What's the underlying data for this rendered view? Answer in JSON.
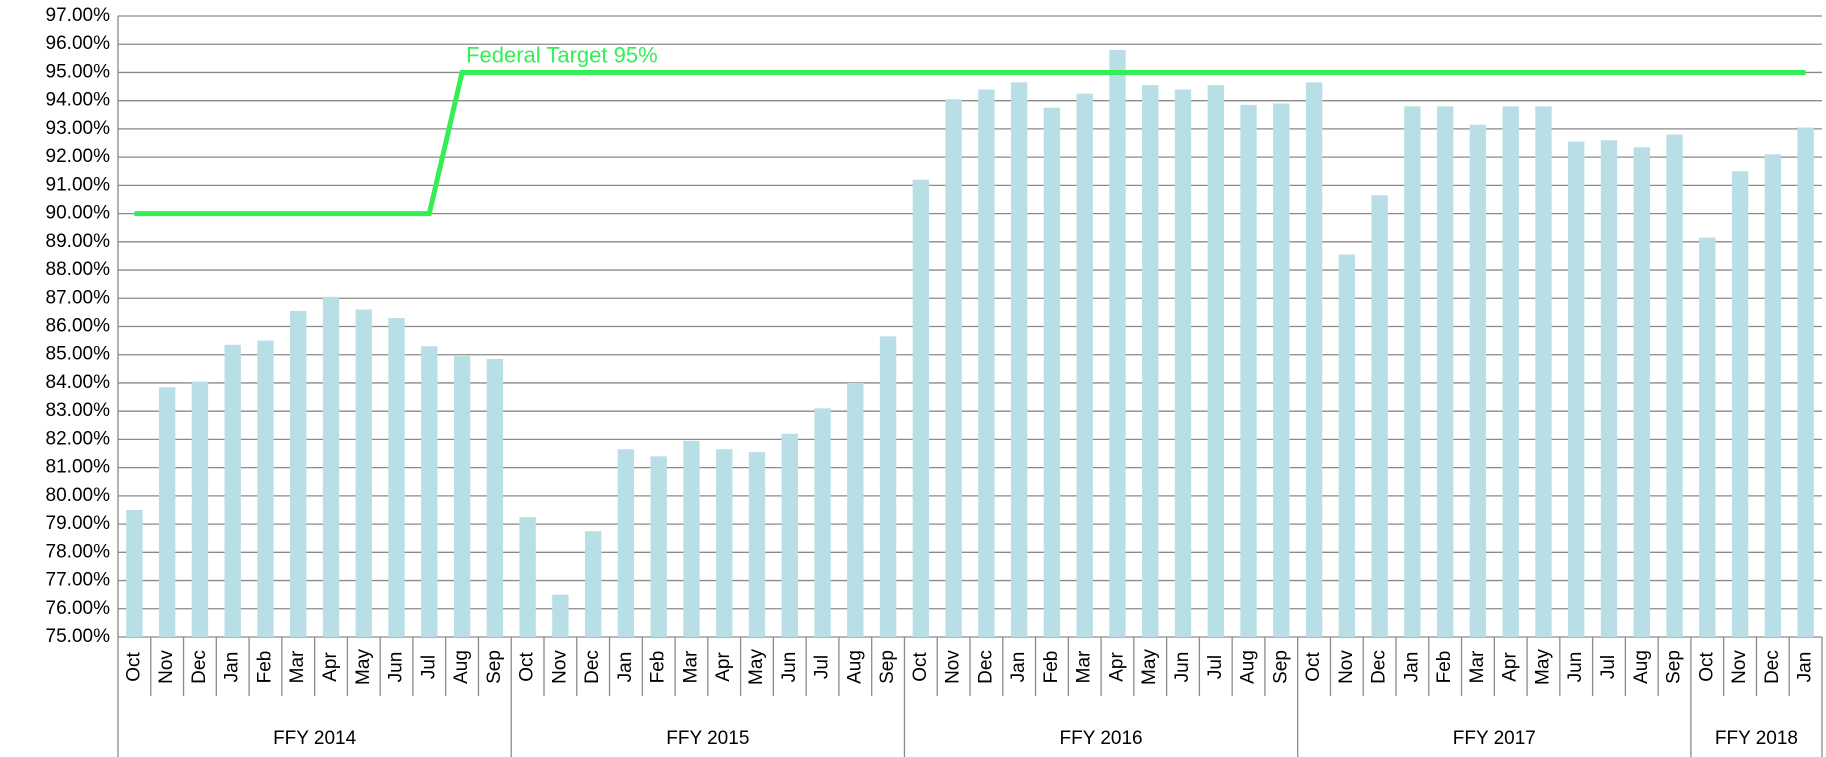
{
  "chart_data": {
    "type": "bar",
    "groups": [
      {
        "label": "FFY 2014",
        "categories": [
          "Oct",
          "Nov",
          "Dec",
          "Jan",
          "Feb",
          "Mar",
          "Apr",
          "May",
          "Jun",
          "Jul",
          "Aug",
          "Sep"
        ]
      },
      {
        "label": "FFY 2015",
        "categories": [
          "Oct",
          "Nov",
          "Dec",
          "Jan",
          "Feb",
          "Mar",
          "Apr",
          "May",
          "Jun",
          "Jul",
          "Aug",
          "Sep"
        ]
      },
      {
        "label": "FFY 2016",
        "categories": [
          "Oct",
          "Nov",
          "Dec",
          "Jan",
          "Feb",
          "Mar",
          "Apr",
          "May",
          "Jun",
          "Jul",
          "Aug",
          "Sep"
        ]
      },
      {
        "label": "FFY 2017",
        "categories": [
          "Oct",
          "Nov",
          "Dec",
          "Jan",
          "Feb",
          "Mar",
          "Apr",
          "May",
          "Jun",
          "Jul",
          "Aug",
          "Sep"
        ]
      },
      {
        "label": "FFY 2018",
        "categories": [
          "Oct",
          "Nov",
          "Dec",
          "Jan"
        ]
      }
    ],
    "series": [
      {
        "type": "bar",
        "color": "#b8dfe6",
        "values": [
          79.5,
          83.85,
          84.05,
          85.35,
          85.5,
          86.55,
          87.05,
          86.6,
          86.3,
          85.3,
          84.95,
          84.85,
          79.25,
          76.5,
          78.75,
          81.65,
          81.4,
          81.95,
          81.65,
          81.55,
          82.2,
          83.1,
          84.0,
          85.65,
          91.2,
          94.05,
          94.4,
          94.65,
          93.75,
          94.25,
          95.8,
          94.55,
          94.4,
          94.55,
          93.85,
          93.9,
          94.65,
          88.55,
          90.65,
          93.8,
          93.8,
          93.15,
          93.8,
          93.8,
          92.55,
          92.6,
          92.35,
          92.8,
          89.15,
          91.5,
          92.1,
          93.05
        ]
      },
      {
        "type": "line",
        "color": "#33ee55",
        "values": [
          90,
          90,
          90,
          90,
          90,
          90,
          90,
          90,
          90,
          90,
          95,
          95,
          95,
          95,
          95,
          95,
          95,
          95,
          95,
          95,
          95,
          95,
          95,
          95,
          95,
          95,
          95,
          95,
          95,
          95,
          95,
          95,
          95,
          95,
          95,
          95,
          95,
          95,
          95,
          95,
          95,
          95,
          95,
          95,
          95,
          95,
          95,
          95,
          95,
          95,
          95,
          95
        ]
      }
    ],
    "annotation": "Federal Target 95%",
    "ylim": [
      75,
      97
    ],
    "yticks": [
      {
        "value": 75,
        "label": "75.00%"
      },
      {
        "value": 76,
        "label": "76.00%"
      },
      {
        "value": 77,
        "label": "77.00%"
      },
      {
        "value": 78,
        "label": "78.00%"
      },
      {
        "value": 79,
        "label": "79.00%"
      },
      {
        "value": 80,
        "label": "80.00%"
      },
      {
        "value": 81,
        "label": "81.00%"
      },
      {
        "value": 82,
        "label": "82.00%"
      },
      {
        "value": 83,
        "label": "83.00%"
      },
      {
        "value": 84,
        "label": "84.00%"
      },
      {
        "value": 85,
        "label": "85.00%"
      },
      {
        "value": 86,
        "label": "86.00%"
      },
      {
        "value": 87,
        "label": "87.00%"
      },
      {
        "value": 88,
        "label": "88.00%"
      },
      {
        "value": 89,
        "label": "89.00%"
      },
      {
        "value": 90,
        "label": "90.00%"
      },
      {
        "value": 91,
        "label": "91.00%"
      },
      {
        "value": 92,
        "label": "92.00%"
      },
      {
        "value": 93,
        "label": "93.00%"
      },
      {
        "value": 94,
        "label": "94.00%"
      },
      {
        "value": 95,
        "label": "95.00%"
      },
      {
        "value": 96,
        "label": "96.00%"
      },
      {
        "value": 97,
        "label": "97.00%"
      }
    ],
    "grid": true
  }
}
